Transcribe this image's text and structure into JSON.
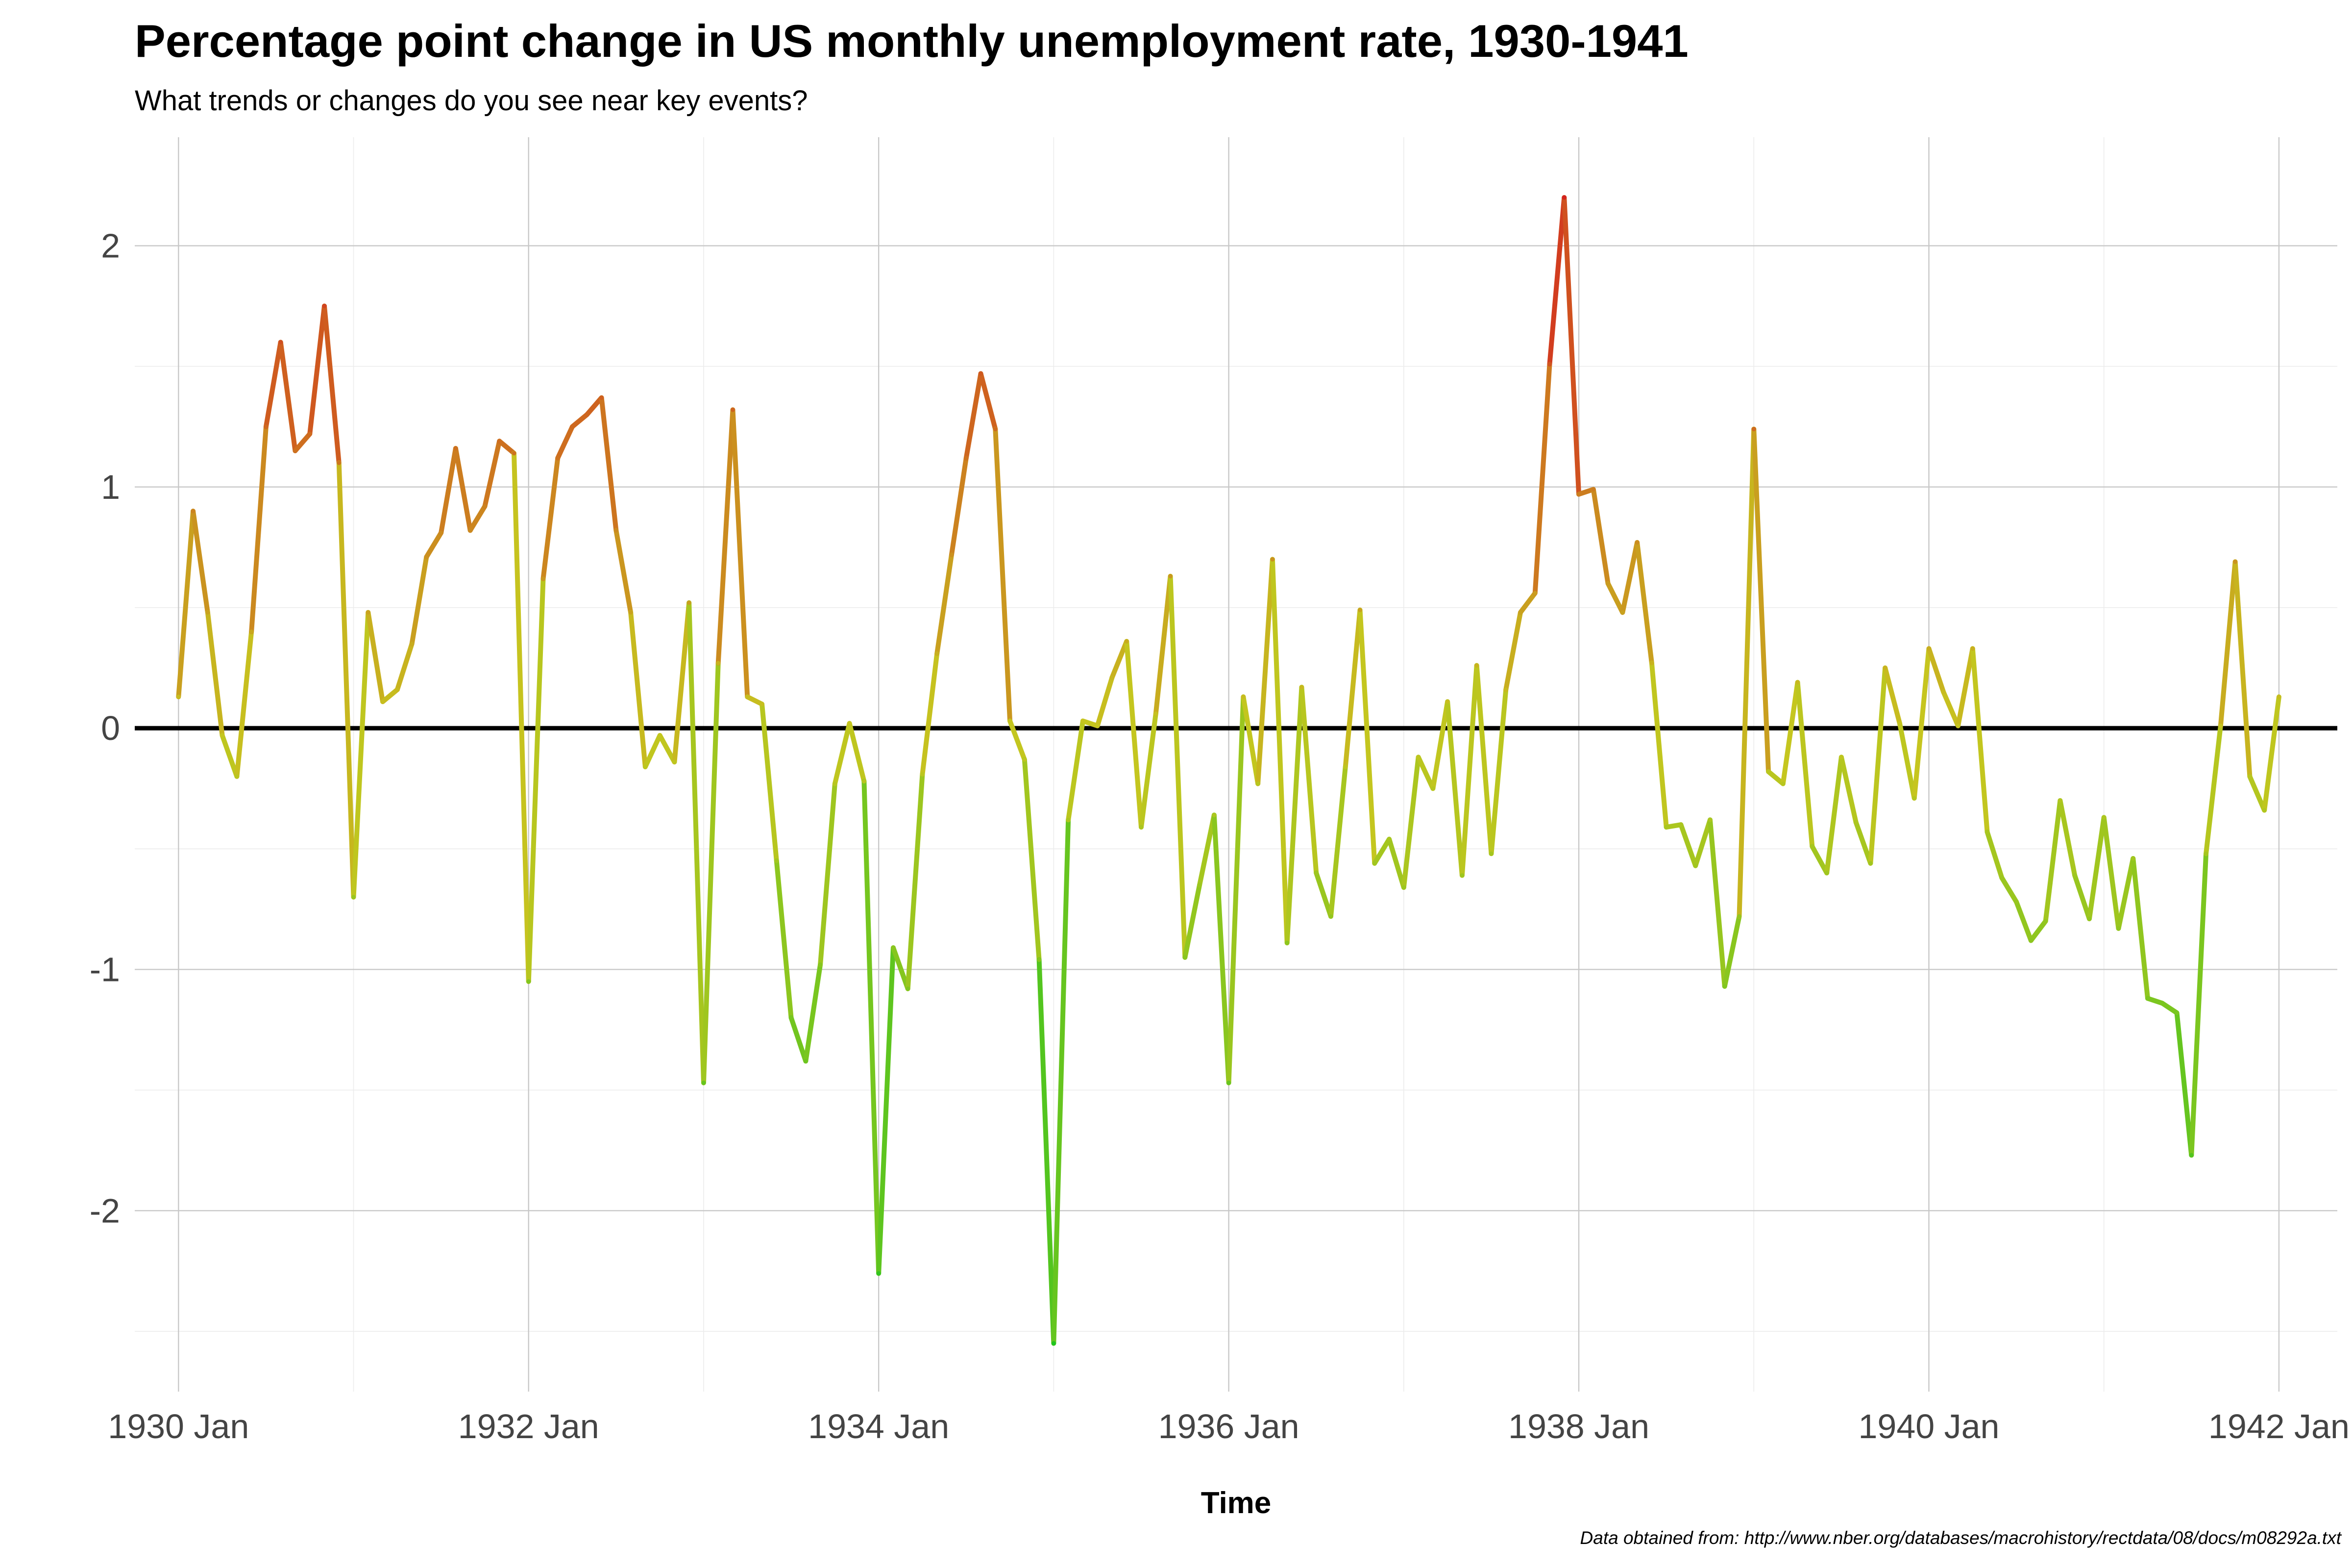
{
  "title": "Percentage point change in US monthly unemployment rate, 1930-1941",
  "subtitle": "What trends or changes do you see near key events?",
  "caption": "Data obtained from: http://www.nber.org/databases/macrohistory/rectdata/08/docs/m08292a.txt",
  "colors": {
    "low": "#1fc51f",
    "mid": "#c6c61f",
    "high": "#d4231f",
    "zero_line": "#000000",
    "grid": "#cccccc"
  },
  "chart_data": {
    "type": "line",
    "xlabel": "Time",
    "ylabel": "",
    "x_tick_labels": [
      "1930 Jan",
      "1932 Jan",
      "1934 Jan",
      "1936 Jan",
      "1938 Jan",
      "1940 Jan",
      "1942 Jan"
    ],
    "y_ticks": [
      -2,
      -1,
      0,
      1,
      2
    ],
    "y_tick_labels": [
      "-2",
      "-1",
      "0",
      "1",
      "2"
    ],
    "x_range": [
      "1929-10",
      "1942-05"
    ],
    "ylim": [
      -2.75,
      2.45
    ],
    "grid": true,
    "reference_line": 0,
    "color_scale": "value-based: green (negative) to yellow to red (positive)",
    "series": [
      {
        "start": "1930-01",
        "frequency": "monthly",
        "values": [
          0.13,
          0.9,
          0.48,
          -0.03,
          -0.2,
          0.4,
          1.25,
          1.6,
          1.15,
          1.22,
          1.75,
          1.1,
          -0.7,
          0.48,
          0.11,
          0.16,
          0.35,
          0.71,
          0.81,
          1.16,
          0.82,
          0.92,
          1.19,
          1.14,
          -1.05,
          0.62,
          1.12,
          1.25,
          1.3,
          1.37,
          0.82,
          0.48,
          -0.16,
          -0.03,
          -0.14,
          0.52,
          -1.47,
          0.27,
          1.32,
          0.13,
          0.1,
          -0.55,
          -1.2,
          -1.38,
          -0.98,
          -0.23,
          0.02,
          -0.22,
          -2.26,
          -0.91,
          -1.08,
          -0.19,
          0.31,
          0.72,
          1.12,
          1.47,
          1.24,
          0.03,
          -0.13,
          -0.96,
          -2.55,
          -0.38,
          0.03,
          0.01,
          0.21,
          0.36,
          -0.41,
          0.06,
          0.63,
          -0.95,
          -0.65,
          -0.36,
          -1.47,
          0.13,
          -0.23,
          0.7,
          -0.89,
          0.17,
          -0.6,
          -0.78,
          -0.16,
          0.49,
          -0.56,
          -0.46,
          -0.66,
          -0.12,
          -0.25,
          0.11,
          -0.61,
          0.26,
          -0.52,
          0.16,
          0.48,
          0.56,
          1.51,
          2.2,
          0.97,
          0.99,
          0.6,
          0.48,
          0.77,
          0.27,
          -0.41,
          -0.4,
          -0.57,
          -0.38,
          -1.07,
          -0.78,
          1.24,
          -0.18,
          -0.23,
          0.19,
          -0.49,
          -0.6,
          -0.12,
          -0.39,
          -0.56,
          0.25,
          0.02,
          -0.29,
          0.33,
          0.15,
          0.01,
          0.33,
          -0.43,
          -0.62,
          -0.72,
          -0.88,
          -0.8,
          -0.3,
          -0.61,
          -0.79,
          -0.37,
          -0.83,
          -0.54,
          -1.12,
          -1.14,
          -1.18,
          -1.77,
          -0.52,
          0.01,
          0.69,
          -0.2,
          -0.34,
          0.13
        ]
      }
    ]
  }
}
